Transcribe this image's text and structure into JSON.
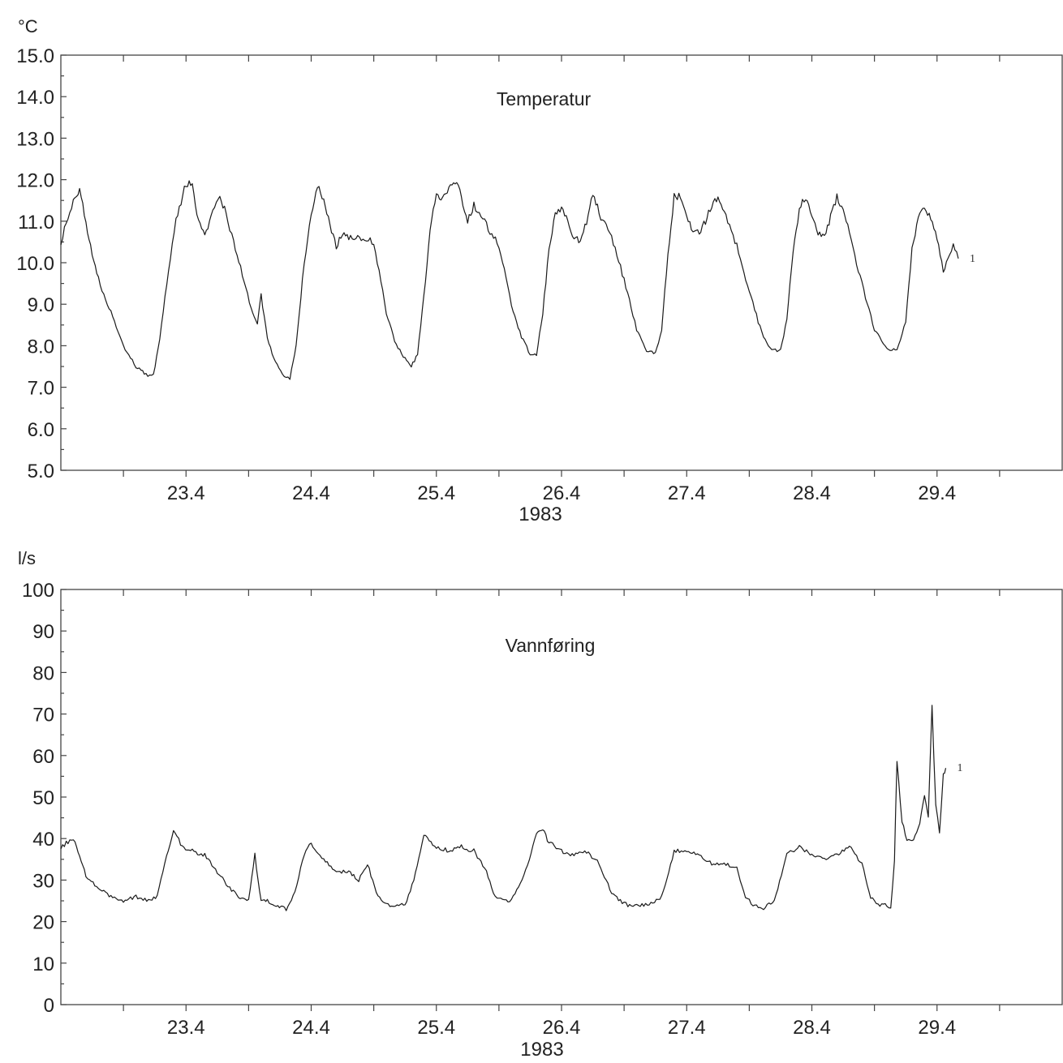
{
  "chart_data": [
    {
      "type": "line",
      "title": "Temperatur",
      "ylabel": "°C",
      "xlabel": "1983",
      "ylim": [
        5.0,
        15.0
      ],
      "yticks": [
        "5.0",
        "6.0",
        "7.0",
        "8.0",
        "9.0",
        "10.0",
        "11.0",
        "12.0",
        "13.0",
        "14.0",
        "15.0"
      ],
      "xlim": [
        22.4,
        30.4
      ],
      "xticks": [
        "23.4",
        "24.4",
        "25.4",
        "26.4",
        "27.4",
        "28.4",
        "29.4"
      ],
      "grid": false,
      "end_label": "1",
      "series": [
        {
          "x": [
            22.4,
            22.5,
            22.55,
            22.6,
            22.65,
            22.7,
            22.8,
            22.9,
            23.0,
            23.08,
            23.14,
            23.19,
            23.26,
            23.32,
            23.4,
            23.45,
            23.5,
            23.55,
            23.6,
            23.67,
            23.72,
            23.78,
            23.85,
            23.92,
            23.97,
            24.0,
            24.05,
            24.1,
            24.17,
            24.23,
            24.28,
            24.33,
            24.4,
            24.45,
            24.5,
            24.55,
            24.6,
            24.65,
            24.7,
            24.8,
            24.9,
            25.0,
            25.08,
            25.15,
            25.2,
            25.25,
            25.3,
            25.35,
            25.4,
            25.45,
            25.5,
            25.55,
            25.6,
            25.65,
            25.7,
            25.8,
            25.9,
            26.0,
            26.08,
            26.15,
            26.2,
            26.25,
            26.3,
            26.35,
            26.4,
            26.45,
            26.5,
            26.55,
            26.6,
            26.65,
            26.7,
            26.8,
            26.9,
            27.0,
            27.08,
            27.15,
            27.2,
            27.25,
            27.3,
            27.35,
            27.4,
            27.45,
            27.5,
            27.55,
            27.6,
            27.65,
            27.7,
            27.8,
            27.9,
            28.0,
            28.08,
            28.15,
            28.2,
            28.25,
            28.3,
            28.35,
            28.4,
            28.45,
            28.5,
            28.55,
            28.6,
            28.65,
            28.7,
            28.8,
            28.9,
            29.0,
            29.08,
            29.15,
            29.2,
            29.25,
            29.3,
            29.35,
            29.4,
            29.45,
            29.5,
            29.53,
            29.57
          ],
          "y": [
            10.5,
            11.5,
            11.8,
            11.0,
            10.2,
            9.6,
            8.8,
            8.0,
            7.5,
            7.3,
            7.3,
            8.2,
            9.8,
            11.0,
            11.9,
            11.9,
            11.0,
            10.6,
            11.1,
            11.6,
            11.2,
            10.5,
            9.7,
            8.9,
            8.5,
            9.2,
            8.2,
            7.7,
            7.3,
            7.2,
            8.0,
            9.6,
            11.2,
            11.9,
            11.5,
            10.9,
            10.4,
            10.7,
            10.6,
            10.6,
            10.5,
            8.8,
            8.0,
            7.7,
            7.5,
            7.8,
            9.2,
            10.8,
            11.7,
            11.5,
            11.8,
            12.0,
            11.6,
            11.0,
            11.4,
            10.9,
            10.4,
            9.0,
            8.2,
            7.8,
            7.8,
            8.8,
            10.3,
            11.2,
            11.3,
            11.0,
            10.6,
            10.5,
            11.0,
            11.7,
            11.2,
            10.6,
            9.6,
            8.4,
            7.9,
            7.8,
            8.4,
            10.2,
            11.6,
            11.6,
            11.1,
            10.8,
            10.7,
            11.0,
            11.4,
            11.6,
            11.2,
            10.4,
            9.3,
            8.3,
            7.9,
            7.9,
            8.6,
            10.3,
            11.3,
            11.6,
            11.1,
            10.7,
            10.6,
            11.1,
            11.6,
            11.3,
            10.7,
            9.5,
            8.4,
            7.9,
            7.9,
            8.6,
            10.3,
            11.1,
            11.3,
            11.1,
            10.6,
            9.8,
            10.2,
            10.4,
            10.1
          ]
        }
      ]
    },
    {
      "type": "line",
      "title": "Vannføring",
      "ylabel": "l/s",
      "xlabel": "1983",
      "ylim": [
        0,
        100
      ],
      "yticks": [
        "0",
        "10",
        "20",
        "30",
        "40",
        "50",
        "60",
        "70",
        "80",
        "90",
        "100"
      ],
      "xlim": [
        22.4,
        30.4
      ],
      "xticks": [
        "23.4",
        "24.4",
        "25.4",
        "26.4",
        "27.4",
        "28.4",
        "29.4"
      ],
      "grid": false,
      "end_label": "1",
      "series": [
        {
          "x": [
            22.4,
            22.5,
            22.55,
            22.6,
            22.7,
            22.8,
            22.9,
            23.0,
            23.1,
            23.17,
            23.23,
            23.3,
            23.37,
            23.45,
            23.55,
            23.65,
            23.75,
            23.82,
            23.9,
            23.95,
            24.0,
            24.05,
            24.12,
            24.2,
            24.27,
            24.33,
            24.4,
            24.5,
            24.6,
            24.7,
            24.78,
            24.85,
            24.92,
            25.0,
            25.1,
            25.15,
            25.22,
            25.3,
            25.4,
            25.5,
            25.6,
            25.7,
            25.8,
            25.87,
            25.93,
            26.0,
            26.1,
            26.2,
            26.25,
            26.3,
            26.4,
            26.5,
            26.6,
            26.7,
            26.8,
            26.87,
            26.93,
            27.0,
            27.1,
            27.2,
            27.3,
            27.4,
            27.5,
            27.6,
            27.7,
            27.8,
            27.87,
            27.93,
            28.0,
            28.1,
            28.2,
            28.3,
            28.4,
            28.5,
            28.6,
            28.7,
            28.8,
            28.87,
            28.93,
            29.0,
            29.03,
            29.06,
            29.08,
            29.12,
            29.16,
            29.2,
            29.25,
            29.3,
            29.33,
            29.36,
            29.39,
            29.42,
            29.45,
            29.47
          ],
          "y": [
            38,
            40,
            36,
            31,
            28,
            26,
            25,
            26,
            25,
            26,
            34,
            42,
            38,
            37,
            36,
            32,
            28,
            26,
            25,
            36,
            25,
            25,
            24,
            23,
            27,
            35,
            39,
            35,
            32,
            32,
            30,
            34,
            27,
            24,
            24,
            24,
            30,
            41,
            38,
            37,
            38,
            37,
            32,
            26,
            25,
            25,
            31,
            41,
            42,
            39,
            37,
            36,
            37,
            34,
            27,
            25,
            24,
            24,
            24,
            26,
            37,
            37,
            36,
            34,
            34,
            33,
            26,
            24,
            23,
            25,
            36,
            38,
            36,
            35,
            36,
            38,
            34,
            26,
            24,
            24,
            23,
            35,
            59,
            44,
            40,
            39,
            42,
            50,
            45,
            72,
            48,
            41,
            55,
            57
          ]
        }
      ]
    }
  ]
}
